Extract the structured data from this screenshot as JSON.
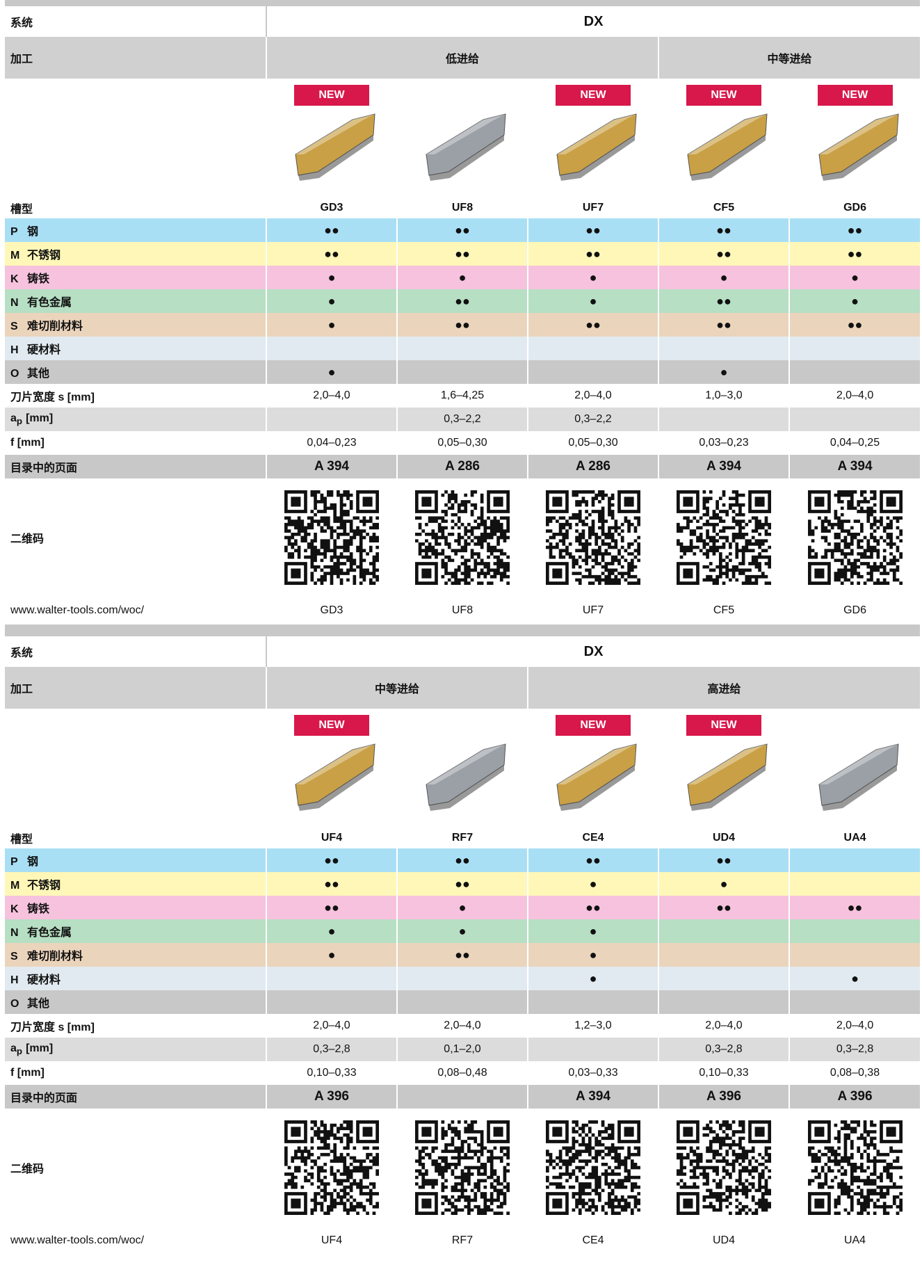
{
  "labels": {
    "system": "系统",
    "process": "加工",
    "groove": "槽型",
    "width": "刀片宽度 s [mm]",
    "ap": {
      "main": "a",
      "sub": "p",
      "unit": "[mm]"
    },
    "f": "f [mm]",
    "page": "目录中的页面",
    "qr": "二维码",
    "url": "www.walter-tools.com/woc/"
  },
  "materials": [
    {
      "letter": "P",
      "name": "钢",
      "color": "#a9dff5"
    },
    {
      "letter": "M",
      "name": "不锈钢",
      "color": "#fef7b7"
    },
    {
      "letter": "K",
      "name": "铸铁",
      "color": "#f6c2dd"
    },
    {
      "letter": "N",
      "name": "有色金属",
      "color": "#b6dfc4"
    },
    {
      "letter": "S",
      "name": "难切削材料",
      "color": "#ebd4bc"
    },
    {
      "letter": "H",
      "name": "硬材料",
      "color": "#e1eaf0"
    },
    {
      "letter": "O",
      "name": "其他",
      "color": "#c8c8c8"
    }
  ],
  "tables": [
    {
      "system": "DX",
      "groups": [
        {
          "label": "低进给",
          "columns": [
            {
              "badge": "NEW",
              "groove": "GD3",
              "insert_color": "#c9a045",
              "ratings": [
                "●●",
                "●●",
                "●",
                "●",
                "●",
                null,
                "●"
              ],
              "width": "2,0–4,0",
              "ap": null,
              "f": "0,04–0,23",
              "page": "A 394",
              "code": "GD3"
            },
            {
              "groove": "UF8",
              "insert_color": "#9aa0a6",
              "ratings": [
                "●●",
                "●●",
                "●",
                "●●",
                "●●",
                null,
                null
              ],
              "width": "1,6–4,25",
              "ap": "0,3–2,2",
              "f": "0,05–0,30",
              "page": "A 286",
              "code": "UF8"
            },
            {
              "badge": "NEW",
              "groove": "UF7",
              "insert_color": "#c9a045",
              "ratings": [
                "●●",
                "●●",
                "●",
                "●",
                "●●",
                null,
                null
              ],
              "width": "2,0–4,0",
              "ap": "0,3–2,2",
              "f": "0,05–0,30",
              "page": "A 286",
              "code": "UF7"
            }
          ]
        },
        {
          "label": "中等进给",
          "columns": [
            {
              "badge": "NEW",
              "groove": "CF5",
              "insert_color": "#c9a045",
              "ratings": [
                "●●",
                "●●",
                "●",
                "●●",
                "●●",
                null,
                "●"
              ],
              "width": "1,0–3,0",
              "ap": null,
              "f": "0,03–0,23",
              "page": "A 394",
              "code": "CF5"
            },
            {
              "badge": "NEW",
              "groove": "GD6",
              "insert_color": "#c9a045",
              "ratings": [
                "●●",
                "●●",
                "●",
                "●",
                "●●",
                null,
                null
              ],
              "width": "2,0–4,0",
              "ap": null,
              "f": "0,04–0,25",
              "page": "A 394",
              "code": "GD6"
            }
          ]
        }
      ]
    },
    {
      "system": "DX",
      "groups": [
        {
          "label": "中等进给",
          "columns": [
            {
              "badge": "NEW",
              "groove": "UF4",
              "insert_color": "#c9a045",
              "ratings": [
                "●●",
                "●●",
                "●●",
                "●",
                "●",
                null,
                null
              ],
              "width": "2,0–4,0",
              "ap": "0,3–2,8",
              "f": "0,10–0,33",
              "page": "A 396",
              "code": "UF4"
            },
            {
              "groove": "RF7",
              "insert_color": "#9aa0a6",
              "ratings": [
                "●●",
                "●●",
                "●",
                "●",
                "●●",
                null,
                null
              ],
              "width": "2,0–4,0",
              "ap": "0,1–2,0",
              "f": "0,08–0,48",
              "page": null,
              "code": "RF7"
            }
          ]
        },
        {
          "label": "高进给",
          "columns": [
            {
              "badge": "NEW",
              "groove": "CE4",
              "insert_color": "#c9a045",
              "ratings": [
                "●●",
                "●",
                "●●",
                "●",
                "●",
                "●",
                null
              ],
              "width": "1,2–3,0",
              "ap": null,
              "f": "0,03–0,33",
              "page": "A 394",
              "code": "CE4"
            },
            {
              "badge": "NEW",
              "groove": "UD4",
              "insert_color": "#c9a045",
              "ratings": [
                "●●",
                "●",
                "●●",
                null,
                null,
                null,
                null
              ],
              "width": "2,0–4,0",
              "ap": "0,3–2,8",
              "f": "0,10–0,33",
              "page": "A 396",
              "code": "UD4"
            },
            {
              "groove": "UA4",
              "insert_color": "#9aa0a6",
              "ratings": [
                null,
                null,
                "●●",
                null,
                null,
                "●",
                null
              ],
              "width": "2,0–4,0",
              "ap": "0,3–2,8",
              "f": "0,08–0,38",
              "page": "A 396",
              "code": "UA4"
            }
          ]
        }
      ]
    }
  ]
}
